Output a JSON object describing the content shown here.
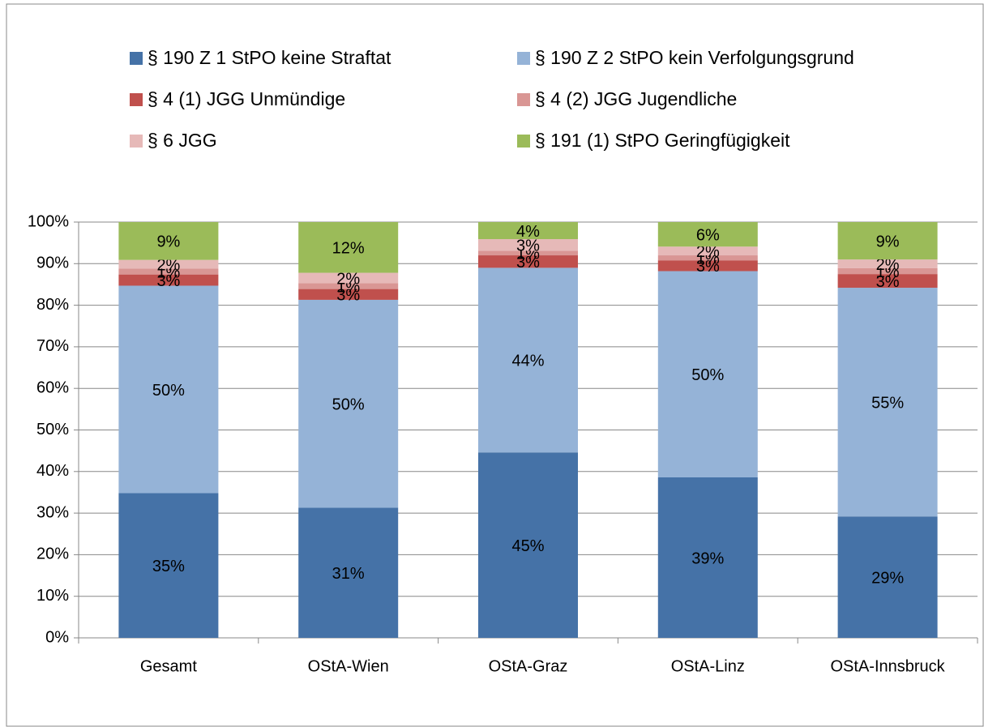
{
  "chart_data": {
    "type": "stacked_bar",
    "categories": [
      "Gesamt",
      "OStA-Wien",
      "OStA-Graz",
      "OStA-Linz",
      "OStA-Innsbruck"
    ],
    "series": [
      {
        "name": "§ 190 Z 1 StPO keine Straftat",
        "color": "#4572a7",
        "values": [
          34.8,
          31.3,
          44.6,
          38.6,
          29.2
        ],
        "value_labels": [
          "35%",
          "31%",
          "45%",
          "39%",
          "29%"
        ]
      },
      {
        "name": "§ 190 Z 2 StPO kein Verfolgungsgrund",
        "color": "#95b3d7",
        "values": [
          49.9,
          50.0,
          44.4,
          49.6,
          55.0
        ],
        "value_labels": [
          "50%",
          "50%",
          "44%",
          "50%",
          "55%"
        ]
      },
      {
        "name": "§ 4 (1) JGG Unmündige",
        "color": "#c0504d",
        "values": [
          2.7,
          2.6,
          3.0,
          2.6,
          3.3
        ],
        "value_labels": [
          "3%",
          "3%",
          "3%",
          "3%",
          "3%"
        ]
      },
      {
        "name": "§ 4 (2) JGG Jugendliche",
        "color": "#d99694",
        "values": [
          1.4,
          1.4,
          1.1,
          1.2,
          1.4
        ],
        "value_labels": [
          "1%",
          "1%",
          "1%",
          "1%",
          "1%"
        ]
      },
      {
        "name": "§ 6 JGG",
        "color": "#e6b9b8",
        "values": [
          2.1,
          2.5,
          2.8,
          2.1,
          2.1
        ],
        "value_labels": [
          "2%",
          "2%",
          "3%",
          "2%",
          "2%"
        ]
      },
      {
        "name": "§ 191 (1) StPO Geringfügigkeit",
        "color": "#9bbb59",
        "values": [
          9.1,
          12.2,
          4.1,
          5.9,
          9.0
        ],
        "value_labels": [
          "9%",
          "12%",
          "4%",
          "6%",
          "9%"
        ]
      }
    ],
    "ylim": [
      0,
      100
    ],
    "yticks": [
      {
        "value": 0,
        "label": "0%"
      },
      {
        "value": 10,
        "label": "10%"
      },
      {
        "value": 20,
        "label": "20%"
      },
      {
        "value": 30,
        "label": "30%"
      },
      {
        "value": 40,
        "label": "40%"
      },
      {
        "value": 50,
        "label": "50%"
      },
      {
        "value": 60,
        "label": "60%"
      },
      {
        "value": 70,
        "label": "70%"
      },
      {
        "value": 80,
        "label": "80%"
      },
      {
        "value": 90,
        "label": "90%"
      },
      {
        "value": 100,
        "label": "100%"
      }
    ],
    "grid": true,
    "legend": "top"
  }
}
